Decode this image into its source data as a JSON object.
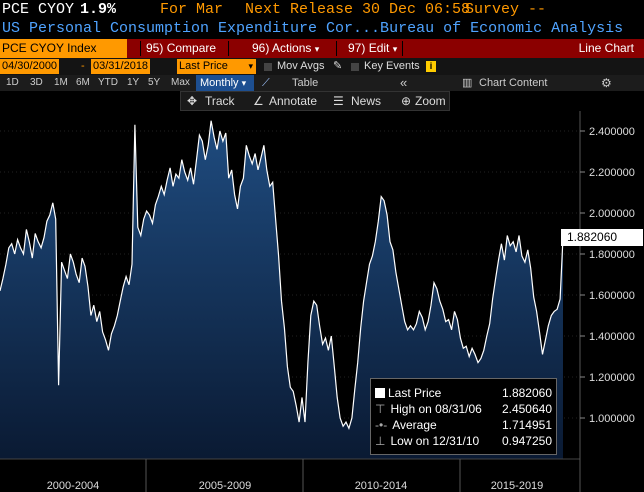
{
  "header": {
    "ticker": "PCE CYOY",
    "value": "1.9%",
    "for_label": "For Mar",
    "next_release": "Next Release 30 Dec 06:58",
    "survey": "Survey --",
    "description": "US Personal Consumption Expenditure Cor...Bureau of Economic Analysis"
  },
  "toolbar": {
    "security": "PCE CYOY Index",
    "compare": "Compare",
    "compare_num": "95",
    "actions": "Actions",
    "actions_num": "96",
    "edit": "Edit",
    "edit_num": "97",
    "chart_type": "Line Chart"
  },
  "controls": {
    "start_date": "04/30/2000",
    "end_date": "03/31/2018",
    "field": "Last Price",
    "mov_avgs": "Mov Avgs",
    "key_events": "Key Events",
    "periods": [
      "1D",
      "3D",
      "1M",
      "6M",
      "YTD",
      "1Y",
      "5Y",
      "Max"
    ],
    "frequency": "Monthly",
    "table": "Table",
    "collapse": "«",
    "chart_content": "Chart Content"
  },
  "tools": {
    "track": "Track",
    "annotate": "Annotate",
    "news": "News",
    "zoom": "Zoom"
  },
  "legend": {
    "last_price_label": "Last Price",
    "last_price_value": "1.882060",
    "high_label": "High on 08/31/06",
    "high_value": "2.450640",
    "average_label": "Average",
    "average_value": "1.714951",
    "low_label": "Low on 12/31/10",
    "low_value": "0.947250"
  },
  "colors": {
    "accent_orange": "#ff9900",
    "toolbar_red": "#8b0000",
    "link_blue": "#4fa3ff",
    "area_top": "#1f4c80",
    "area_bottom": "#0a1a33"
  },
  "chart_data": {
    "type": "area",
    "ylim": [
      0.8,
      2.55
    ],
    "yticks": [
      "2.400000",
      "2.200000",
      "2.000000",
      "1.800000",
      "1.600000",
      "1.400000",
      "1.200000",
      "1.000000"
    ],
    "ytick_values": [
      2.4,
      2.2,
      2.0,
      1.8,
      1.6,
      1.4,
      1.2,
      1.0
    ],
    "xlabels": [
      "2000-2004",
      "2005-2009",
      "2010-2014",
      "2015-2019"
    ],
    "last_value_label": "1.882060",
    "series": [
      {
        "values": [
          1.62,
          1.68,
          1.75,
          1.83,
          1.85,
          1.8,
          1.87,
          1.83,
          1.8,
          1.92,
          1.86,
          1.78,
          1.9,
          1.86,
          1.83,
          1.88,
          1.96,
          1.99,
          2.05,
          1.97,
          1.16,
          1.76,
          1.72,
          1.68,
          1.8,
          1.76,
          1.7,
          1.66,
          1.78,
          1.74,
          1.64,
          1.5,
          1.55,
          1.47,
          1.52,
          1.42,
          1.38,
          1.33,
          1.41,
          1.45,
          1.5,
          1.57,
          1.64,
          1.69,
          1.65,
          1.75,
          2.43,
          1.93,
          1.89,
          1.97,
          2.01,
          1.99,
          1.95,
          2.04,
          2.08,
          2.13,
          2.09,
          2.16,
          2.22,
          2.13,
          2.19,
          2.17,
          2.26,
          2.2,
          2.16,
          2.22,
          2.14,
          2.26,
          2.38,
          2.35,
          2.26,
          2.33,
          2.45,
          2.37,
          2.31,
          2.4,
          2.35,
          2.39,
          2.17,
          2.21,
          2.09,
          2.02,
          2.13,
          2.17,
          2.33,
          2.28,
          2.24,
          2.29,
          2.21,
          2.27,
          2.33,
          2.21,
          2.13,
          2.15,
          1.97,
          1.79,
          1.57,
          1.44,
          1.25,
          1.15,
          1.13,
          1.06,
          0.98,
          1.1,
          0.98,
          1.27,
          1.5,
          1.57,
          1.55,
          1.45,
          1.36,
          1.39,
          1.33,
          1.4,
          1.25,
          1.1,
          1.0,
          0.96,
          0.98,
          0.95,
          1.0,
          1.14,
          1.27,
          1.44,
          1.57,
          1.66,
          1.75,
          1.79,
          1.86,
          1.96,
          2.08,
          2.06,
          1.99,
          1.86,
          1.82,
          1.71,
          1.63,
          1.55,
          1.47,
          1.43,
          1.45,
          1.43,
          1.46,
          1.52,
          1.49,
          1.43,
          1.47,
          1.55,
          1.66,
          1.63,
          1.57,
          1.53,
          1.47,
          1.48,
          1.43,
          1.52,
          1.48,
          1.39,
          1.34,
          1.35,
          1.3,
          1.34,
          1.31,
          1.27,
          1.29,
          1.33,
          1.4,
          1.46,
          1.58,
          1.68,
          1.77,
          1.85,
          1.77,
          1.89,
          1.84,
          1.86,
          1.81,
          1.89,
          1.79,
          1.76,
          1.82,
          1.73,
          1.59,
          1.52,
          1.42,
          1.31,
          1.38,
          1.45,
          1.5,
          1.52,
          1.53,
          1.58,
          1.882
        ]
      }
    ]
  }
}
